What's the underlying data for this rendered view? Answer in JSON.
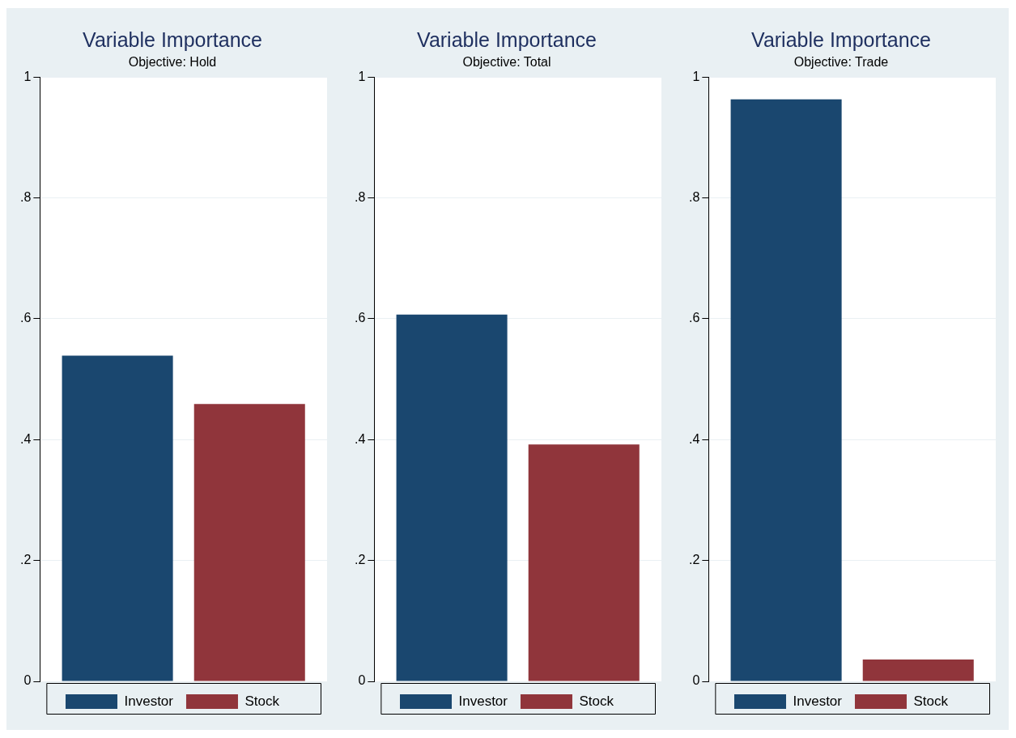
{
  "chart_data": [
    {
      "type": "bar",
      "title": "Variable Importance",
      "subtitle": "Objective: Hold",
      "categories": [
        null
      ],
      "series": [
        {
          "name": "Investor",
          "color": "#1a476f",
          "values": [
            0.539
          ]
        },
        {
          "name": "Stock",
          "color": "#90353b",
          "values": [
            0.459
          ]
        }
      ],
      "ylim": [
        0,
        1
      ],
      "yticks": [
        {
          "value": 0,
          "label": "0"
        },
        {
          "value": 0.2,
          "label": ".2"
        },
        {
          "value": 0.4,
          "label": ".4"
        },
        {
          "value": 0.6,
          "label": ".6"
        },
        {
          "value": 0.8,
          "label": ".8"
        },
        {
          "value": 1,
          "label": "1"
        }
      ],
      "grid": "y",
      "legend": "bottom"
    },
    {
      "type": "bar",
      "title": "Variable Importance",
      "subtitle": "Objective: Total",
      "categories": [
        null
      ],
      "series": [
        {
          "name": "Investor",
          "color": "#1a476f",
          "values": [
            0.607
          ]
        },
        {
          "name": "Stock",
          "color": "#90353b",
          "values": [
            0.392
          ]
        }
      ],
      "ylim": [
        0,
        1
      ],
      "yticks": [
        {
          "value": 0,
          "label": "0"
        },
        {
          "value": 0.2,
          "label": ".2"
        },
        {
          "value": 0.4,
          "label": ".4"
        },
        {
          "value": 0.6,
          "label": ".6"
        },
        {
          "value": 0.8,
          "label": ".8"
        },
        {
          "value": 1,
          "label": "1"
        }
      ],
      "grid": "y",
      "legend": "bottom"
    },
    {
      "type": "bar",
      "title": "Variable Importance",
      "subtitle": "Objective: Trade",
      "categories": [
        null
      ],
      "series": [
        {
          "name": "Investor",
          "color": "#1a476f",
          "values": [
            0.963
          ]
        },
        {
          "name": "Stock",
          "color": "#90353b",
          "values": [
            0.036
          ]
        }
      ],
      "ylim": [
        0,
        1
      ],
      "yticks": [
        {
          "value": 0,
          "label": "0"
        },
        {
          "value": 0.2,
          "label": ".2"
        },
        {
          "value": 0.4,
          "label": ".4"
        },
        {
          "value": 0.6,
          "label": ".6"
        },
        {
          "value": 0.8,
          "label": ".8"
        },
        {
          "value": 1,
          "label": "1"
        }
      ],
      "grid": "y",
      "legend": "bottom"
    }
  ]
}
